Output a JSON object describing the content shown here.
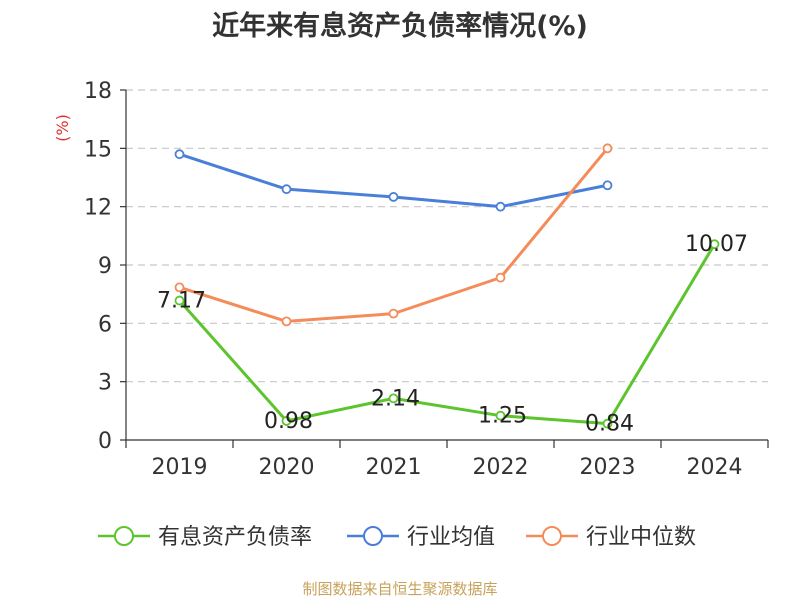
{
  "chart_data": {
    "type": "line",
    "title": "近年来有息资产负债率情况(%)",
    "ylabel": "(%)",
    "categories": [
      "2019",
      "2020",
      "2021",
      "2022",
      "2023",
      "2024"
    ],
    "ylim": [
      0,
      18
    ],
    "yticks": [
      0,
      3,
      6,
      9,
      12,
      15,
      18
    ],
    "grid": true,
    "legend_position": "bottom",
    "series": [
      {
        "name": "有息资产负债率",
        "color": "#5cc42d",
        "values": [
          7.17,
          0.98,
          2.14,
          1.25,
          0.84,
          10.07
        ],
        "labels": [
          "7.17",
          "0.98",
          "2.14",
          "1.25",
          "0.84",
          "10.07"
        ]
      },
      {
        "name": "行业均值",
        "color": "#4a7fd9",
        "values": [
          14.7,
          12.9,
          12.5,
          12.0,
          13.1,
          null
        ]
      },
      {
        "name": "行业中位数",
        "color": "#f48c5a",
        "values": [
          7.85,
          6.1,
          6.5,
          8.35,
          15.0,
          null
        ]
      }
    ]
  },
  "source": "制图数据来自恒生聚源数据库"
}
